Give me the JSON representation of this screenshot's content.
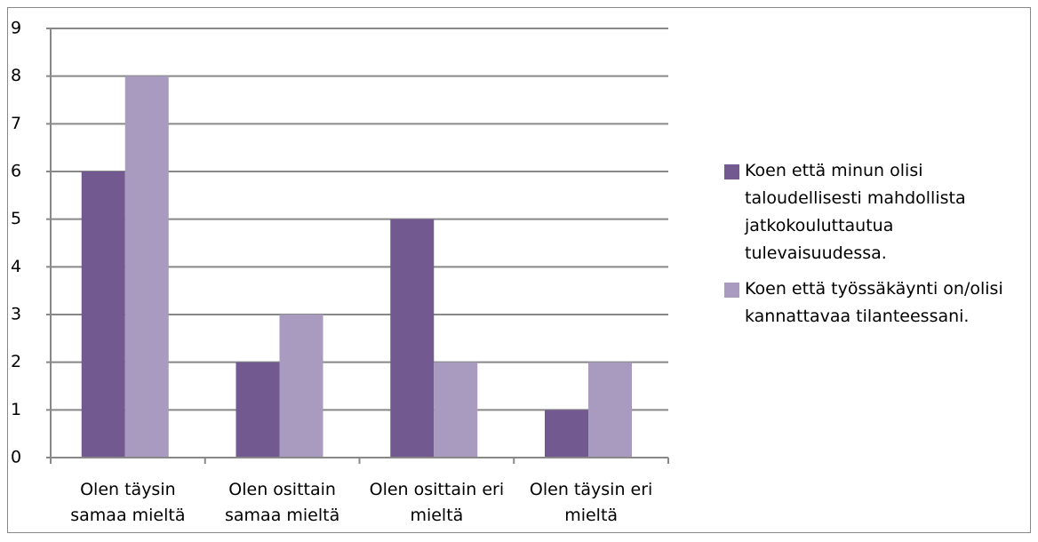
{
  "chart_data": {
    "type": "bar",
    "categories": [
      "Olen täysin samaa mieltä",
      "Olen osittain samaa mieltä",
      "Olen osittain eri mieltä",
      "Olen täysin eri mieltä"
    ],
    "series": [
      {
        "name": "Koen että minun olisi taloudellisesti mahdollista jatkokouluttautua tulevaisuudessa.",
        "color": "#725a91",
        "values": [
          6,
          2,
          5,
          1
        ]
      },
      {
        "name": "Koen että työssäkäynti on/olisi kannattavaa tilanteessani.",
        "color": "#a99bbf",
        "values": [
          8,
          3,
          2,
          2
        ]
      }
    ],
    "ylim": [
      0,
      9
    ],
    "yticks": [
      0,
      1,
      2,
      3,
      4,
      5,
      6,
      7,
      8,
      9
    ],
    "grid": true,
    "legend": "right"
  }
}
